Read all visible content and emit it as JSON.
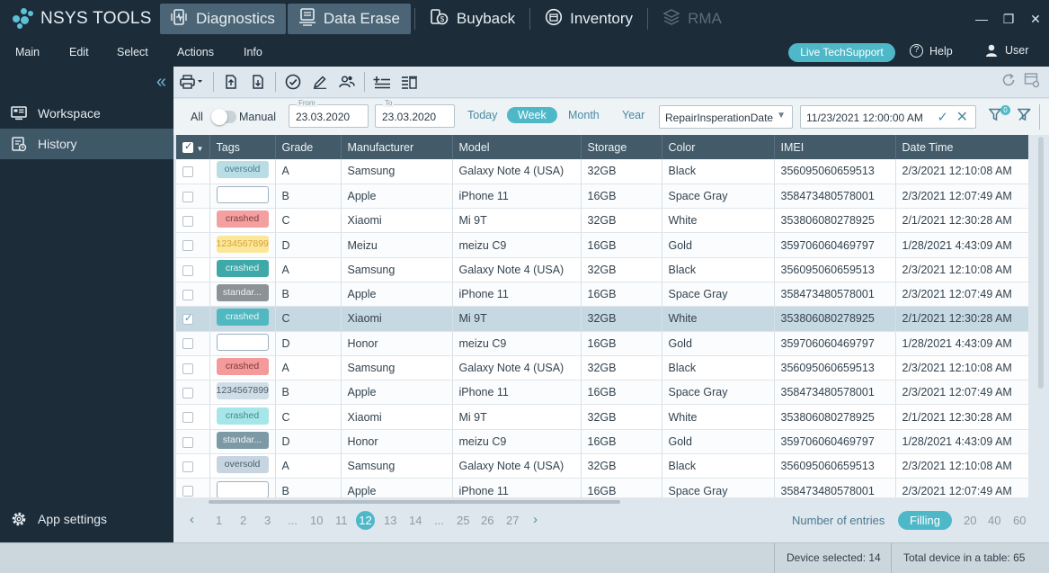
{
  "app": {
    "name": "NSYS TOOLS"
  },
  "modules": [
    {
      "label": "Diagnostics",
      "icon": "diagnostics-icon",
      "active": true
    },
    {
      "label": "Data Erase",
      "icon": "data-erase-icon",
      "active": true
    },
    {
      "label": "Buyback",
      "icon": "buyback-icon",
      "active": false
    },
    {
      "label": "Inventory",
      "icon": "inventory-icon",
      "active": false
    },
    {
      "label": "RMA",
      "icon": "rma-icon",
      "active": false,
      "disabled": true
    }
  ],
  "menu": [
    "Main",
    "Edit",
    "Select",
    "Actions",
    "Info"
  ],
  "header": {
    "live_support": "Live TechSupport",
    "help": "Help",
    "user": "User"
  },
  "sidebar": {
    "items": [
      {
        "label": "Workspace"
      },
      {
        "label": "History"
      }
    ],
    "settings": "App settings"
  },
  "filters": {
    "all": "All",
    "manual": "Manual",
    "from_caption": "From",
    "from": "23.03.2020",
    "to_caption": "To",
    "to": "23.03.2020",
    "periods": [
      "Today",
      "Week",
      "Month",
      "Year"
    ],
    "active_period": "Week",
    "date_field": "RepairInsperationDate",
    "datetime": "11/23/2021 12:00:00 AM",
    "filter_count": "0"
  },
  "table": {
    "columns": [
      "Tags",
      "Grade",
      "Manufacturer",
      "Model",
      "Storage",
      "Color",
      "IMEI",
      "Date Time"
    ],
    "rows": [
      {
        "checked": false,
        "tag": "oversold",
        "tag_bg": "#b8dde4",
        "tag_fg": "#4a7e8c",
        "grade": "A",
        "manufacturer": "Samsung",
        "model": "Galaxy Note 4 (USA)",
        "storage": "32GB",
        "color": "Black",
        "imei": "356095060659513",
        "datetime": "2/3/2021 12:10:08 AM"
      },
      {
        "checked": false,
        "tag": "",
        "tag_bg": "#ffffff",
        "tag_fg": "#4a7e8c",
        "grade": "B",
        "manufacturer": "Apple",
        "model": "iPhone 11",
        "storage": "16GB",
        "color": "Space Gray",
        "imei": "358473480578001",
        "datetime": "2/3/2021 12:07:49 AM"
      },
      {
        "checked": false,
        "tag": "crashed",
        "tag_bg": "#f4a0a0",
        "tag_fg": "#7b3b3b",
        "grade": "C",
        "manufacturer": "Xiaomi",
        "model": "Mi 9T",
        "storage": "32GB",
        "color": "White",
        "imei": "353806080278925",
        "datetime": "2/1/2021 12:30:28 AM"
      },
      {
        "checked": false,
        "tag": "1234567899",
        "tag_bg": "#fbe79a",
        "tag_fg": "#d9a23a",
        "grade": "D",
        "manufacturer": "Meizu",
        "model": "meizu C9",
        "storage": "16GB",
        "color": "Gold",
        "imei": "359706060469797",
        "datetime": "1/28/2021 4:43:09 AM"
      },
      {
        "checked": false,
        "tag": "crashed",
        "tag_bg": "#3fa9aa",
        "tag_fg": "#e9f7f7",
        "grade": "A",
        "manufacturer": "Samsung",
        "model": "Galaxy Note 4 (USA)",
        "storage": "32GB",
        "color": "Black",
        "imei": "356095060659513",
        "datetime": "2/3/2021 12:10:08 AM"
      },
      {
        "checked": false,
        "tag": "standar...",
        "tag_bg": "#8d9296",
        "tag_fg": "#eef0f1",
        "grade": "B",
        "manufacturer": "Apple",
        "model": "iPhone 11",
        "storage": "16GB",
        "color": "Space Gray",
        "imei": "358473480578001",
        "datetime": "2/3/2021 12:07:49 AM"
      },
      {
        "checked": true,
        "tag": "crashed",
        "tag_bg": "#4fb8c0",
        "tag_fg": "#e9f7f7",
        "grade": "C",
        "manufacturer": "Xiaomi",
        "model": "Mi 9T",
        "storage": "32GB",
        "color": "White",
        "imei": "353806080278925",
        "datetime": "2/1/2021 12:30:28 AM"
      },
      {
        "checked": false,
        "tag": "",
        "tag_bg": "#ffffff",
        "tag_fg": "#4a7e8c",
        "grade": "D",
        "manufacturer": "Honor",
        "model": "meizu C9",
        "storage": "16GB",
        "color": "Gold",
        "imei": "359706060469797",
        "datetime": "1/28/2021 4:43:09 AM"
      },
      {
        "checked": false,
        "tag": "crashed",
        "tag_bg": "#f49a9a",
        "tag_fg": "#7b3b3b",
        "grade": "A",
        "manufacturer": "Samsung",
        "model": "Galaxy Note 4 (USA)",
        "storage": "32GB",
        "color": "Black",
        "imei": "356095060659513",
        "datetime": "2/3/2021 12:10:08 AM"
      },
      {
        "checked": false,
        "tag": "1234567899",
        "tag_bg": "#d0dde6",
        "tag_fg": "#4c6070",
        "grade": "B",
        "manufacturer": "Apple",
        "model": "iPhone 11",
        "storage": "16GB",
        "color": "Space Gray",
        "imei": "358473480578001",
        "datetime": "2/3/2021 12:07:49 AM"
      },
      {
        "checked": false,
        "tag": "crashed",
        "tag_bg": "#a6e6e8",
        "tag_fg": "#3f8a8e",
        "grade": "C",
        "manufacturer": "Xiaomi",
        "model": "Mi 9T",
        "storage": "32GB",
        "color": "White",
        "imei": "353806080278925",
        "datetime": "2/1/2021 12:30:28 AM"
      },
      {
        "checked": false,
        "tag": "standar...",
        "tag_bg": "#7c9aa6",
        "tag_fg": "#eef3f5",
        "grade": "D",
        "manufacturer": "Honor",
        "model": "meizu C9",
        "storage": "16GB",
        "color": "Gold",
        "imei": "359706060469797",
        "datetime": "1/28/2021 4:43:09 AM"
      },
      {
        "checked": false,
        "tag": "oversold",
        "tag_bg": "#c6d5e0",
        "tag_fg": "#4c6070",
        "grade": "A",
        "manufacturer": "Samsung",
        "model": "Galaxy Note 4 (USA)",
        "storage": "32GB",
        "color": "Black",
        "imei": "356095060659513",
        "datetime": "2/3/2021 12:10:08 AM"
      },
      {
        "checked": false,
        "tag": "",
        "tag_bg": "#ffffff",
        "tag_fg": "#4a7e8c",
        "grade": "B",
        "manufacturer": "Apple",
        "model": "iPhone 11",
        "storage": "16GB",
        "color": "Space Gray",
        "imei": "358473480578001",
        "datetime": "2/3/2021 12:07:49 AM"
      }
    ]
  },
  "pagination": {
    "pages": [
      "1",
      "2",
      "3",
      "...",
      "10",
      "11",
      "12",
      "13",
      "14",
      "...",
      "25",
      "26",
      "27"
    ],
    "current": "12",
    "entries_label": "Number of entries",
    "fill_label": "Filling",
    "sizes": [
      "20",
      "40",
      "60"
    ]
  },
  "status": {
    "selected": "Device selected: 14",
    "total": "Total device in a table: 65"
  },
  "colors": {
    "accent": "#4fb8c8",
    "dark": "#1c2c39",
    "header": "#435a69"
  }
}
